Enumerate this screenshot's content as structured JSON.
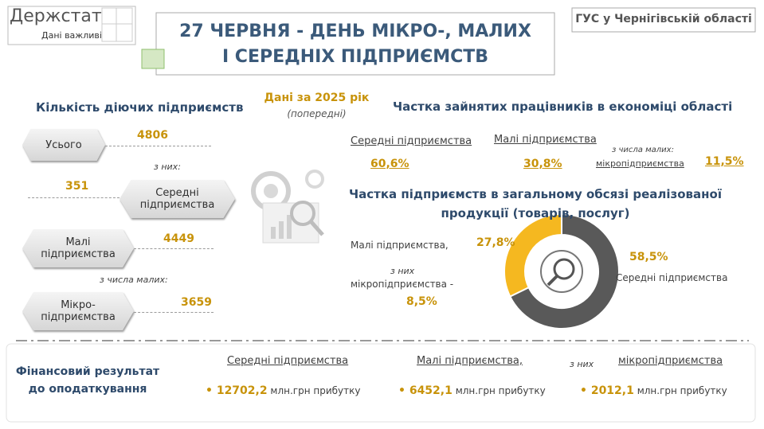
{
  "logo": {
    "name": "Держстат",
    "tagline": "Дані важливі"
  },
  "header": {
    "title_lines": [
      "27 ЧЕРВНЯ - ДЕНЬ МІКРО-, МАЛИХ",
      "І СЕРЕДНІХ ПІДПРИЄМСТВ"
    ],
    "org": "ГУС у Чернігівській області"
  },
  "period": {
    "label": "Дані за 2025 рік",
    "note": "(попередні)"
  },
  "count": {
    "title": "Кількість діючих підприємств",
    "total": {
      "label": "Усього",
      "value": 4806
    },
    "of_them": "з них:",
    "medium": {
      "label": "Середні підприємства",
      "value": 351
    },
    "small": {
      "label": "Малі підприємства",
      "value": 4449
    },
    "of_small": "з числа малих:",
    "micro": {
      "label": "Мікро-підприємства",
      "value": 3659
    }
  },
  "employment": {
    "title": "Частка зайнятих працівників в економіці області",
    "medium": {
      "label": "Середні підприємства",
      "value": "60,6%"
    },
    "small": {
      "label": "Малі підприємства",
      "value": "30,8%"
    },
    "of_small": "з числа малих:",
    "micro": {
      "label": "мікропідприємства",
      "value": "11,5%"
    }
  },
  "chart_data": {
    "type": "pie",
    "title": "Частка підприємств в загальному обсязі реалізованої продукції (товарів, послуг)",
    "categories": [
      "Середні підприємства",
      "Малі підприємства,"
    ],
    "values": [
      58.5,
      27.8
    ],
    "value_labels": [
      "58,5%",
      "27,8%"
    ],
    "colors": [
      "#595959",
      "#f5b820"
    ]
  },
  "sales_micro": {
    "of_them": "з них",
    "label": "мікропідприємства -",
    "value": "8,5%"
  },
  "finance": {
    "title": "Фінансовий результат до оподаткування",
    "items": [
      {
        "label": "Середні підприємства",
        "value": "12702,2",
        "unit": "млн.грн прибутку"
      },
      {
        "label": "Малі підприємства,",
        "value": "6452,1",
        "unit": "млн.грн прибутку"
      },
      {
        "prefix": "з них",
        "label": "мікропідприємства",
        "value": "2012,1",
        "unit": "млн.грн прибутку"
      }
    ]
  }
}
